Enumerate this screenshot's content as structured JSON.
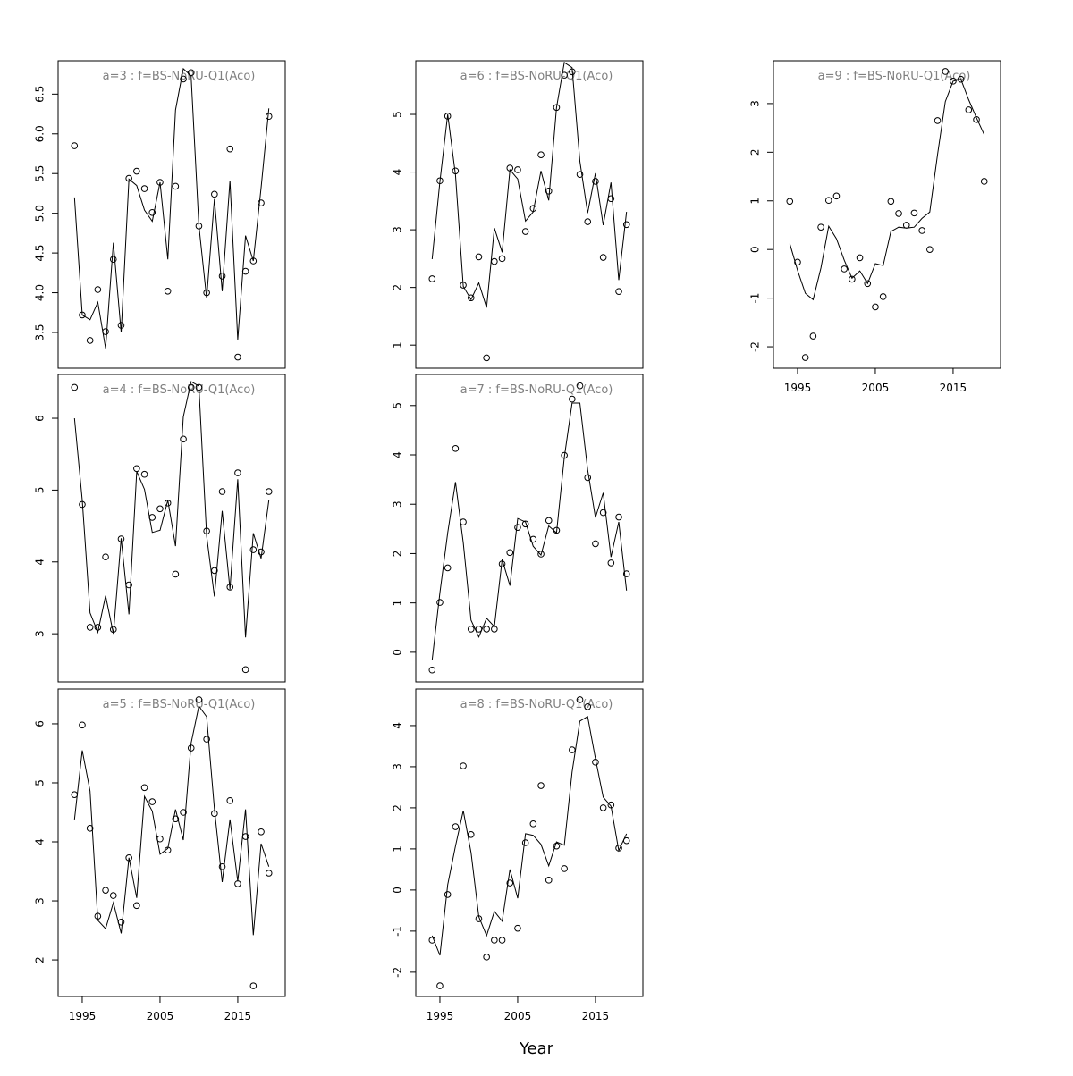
{
  "chart_data": [
    {
      "type": "line",
      "title": "a=3  :  f=BS-NoRU-Q1(Aco)",
      "x": [
        1994,
        1995,
        1996,
        1997,
        1998,
        1999,
        2000,
        2001,
        2002,
        2003,
        2004,
        2005,
        2006,
        2007,
        2008,
        2009,
        2010,
        2011,
        2012,
        2013,
        2014,
        2015,
        2016,
        2017,
        2018,
        2019
      ],
      "series": [
        {
          "style": "points",
          "color": "#000000",
          "values": [
            5.85,
            3.72,
            3.4,
            4.04,
            3.51,
            4.42,
            3.59,
            5.44,
            5.53,
            5.31,
            5.01,
            5.39,
            4.02,
            5.34,
            6.69,
            6.77,
            4.84,
            4.0,
            5.24,
            4.21,
            5.81,
            3.19,
            4.27,
            4.4,
            5.13,
            6.22
          ]
        },
        {
          "style": "line",
          "color": "#000000",
          "values": [
            5.2,
            3.72,
            3.66,
            3.88,
            3.3,
            4.63,
            3.5,
            5.43,
            5.35,
            5.04,
            4.9,
            5.39,
            4.42,
            6.3,
            6.82,
            6.73,
            4.85,
            3.93,
            5.18,
            4.02,
            5.41,
            3.41,
            4.72,
            4.4,
            5.32,
            6.32
          ]
        }
      ],
      "xlim": [
        1991.9,
        2021.1
      ],
      "ylim": [
        3.05,
        6.92
      ],
      "yticks": [
        3.5,
        {
          "value": 4,
          "label": "4.0"
        },
        4.5,
        {
          "value": 5,
          "label": "5.0"
        },
        5.5,
        {
          "value": 6,
          "label": "6.0"
        },
        6.5
      ]
    },
    {
      "type": "line",
      "title": "a=4  :  f=BS-NoRU-Q1(Aco)",
      "x": [
        1994,
        1995,
        1996,
        1997,
        1998,
        1999,
        2000,
        2001,
        2002,
        2003,
        2004,
        2005,
        2006,
        2007,
        2008,
        2009,
        2010,
        2011,
        2012,
        2013,
        2014,
        2015,
        2016,
        2017,
        2018,
        2019
      ],
      "series": [
        {
          "style": "points",
          "color": "#000000",
          "values": [
            6.43,
            4.8,
            3.09,
            3.09,
            4.07,
            3.06,
            4.32,
            3.68,
            5.3,
            5.22,
            4.62,
            4.74,
            4.82,
            3.83,
            5.71,
            6.43,
            6.43,
            4.43,
            3.88,
            4.98,
            3.65,
            5.24,
            2.5,
            4.17,
            4.14,
            4.98
          ]
        },
        {
          "style": "line",
          "color": "#000000",
          "values": [
            6.0,
            4.86,
            3.29,
            3.02,
            3.53,
            3.0,
            4.33,
            3.27,
            5.26,
            5.01,
            4.41,
            4.44,
            4.86,
            4.22,
            6.02,
            6.51,
            6.45,
            4.36,
            3.52,
            4.71,
            3.62,
            5.15,
            2.95,
            4.4,
            4.05,
            4.86
          ]
        }
      ],
      "xlim": [
        1991.9,
        2021.1
      ],
      "ylim": [
        2.33,
        6.61
      ],
      "yticks": [
        3,
        4,
        5,
        6
      ]
    },
    {
      "type": "line",
      "title": "a=5  :  f=BS-NoRU-Q1(Aco)",
      "x": [
        1994,
        1995,
        1996,
        1997,
        1998,
        1999,
        2000,
        2001,
        2002,
        2003,
        2004,
        2005,
        2006,
        2007,
        2008,
        2009,
        2010,
        2011,
        2012,
        2013,
        2014,
        2015,
        2016,
        2017,
        2018,
        2019
      ],
      "series": [
        {
          "style": "points",
          "color": "#000000",
          "values": [
            4.8,
            5.98,
            4.23,
            2.74,
            3.18,
            3.09,
            2.64,
            3.73,
            2.92,
            4.92,
            4.68,
            4.05,
            3.86,
            4.39,
            4.5,
            5.59,
            6.41,
            5.74,
            4.48,
            3.58,
            4.7,
            3.29,
            4.09,
            1.56,
            4.17,
            3.47
          ]
        },
        {
          "style": "line",
          "color": "#000000",
          "values": [
            4.38,
            5.55,
            4.86,
            2.67,
            2.53,
            2.97,
            2.45,
            3.73,
            3.05,
            4.77,
            4.52,
            3.79,
            3.89,
            4.55,
            4.03,
            5.67,
            6.3,
            6.12,
            4.56,
            3.32,
            4.38,
            3.33,
            4.55,
            2.42,
            3.97,
            3.58
          ]
        }
      ],
      "xlim": [
        1991.9,
        2021.1
      ],
      "ylim": [
        1.38,
        6.59
      ],
      "yticks": [
        2,
        3,
        4,
        5,
        6
      ],
      "xticks": [
        1995,
        2005,
        2015
      ]
    },
    {
      "type": "line",
      "title": "a=6  :  f=BS-NoRU-Q1(Aco)",
      "x": [
        1994,
        1995,
        1996,
        1997,
        1998,
        1999,
        2000,
        2001,
        2002,
        2003,
        2004,
        2005,
        2006,
        2007,
        2008,
        2009,
        2010,
        2011,
        2012,
        2013,
        2014,
        2015,
        2016,
        2017,
        2018,
        2019
      ],
      "series": [
        {
          "style": "points",
          "color": "#000000",
          "values": [
            2.15,
            3.85,
            4.97,
            4.02,
            2.04,
            1.82,
            2.53,
            0.78,
            2.45,
            2.5,
            4.07,
            4.04,
            2.97,
            3.37,
            4.3,
            3.67,
            5.12,
            5.68,
            5.74,
            3.96,
            3.14,
            3.84,
            2.52,
            3.54,
            1.93,
            3.09
          ]
        },
        {
          "style": "line",
          "color": "#000000",
          "values": [
            2.49,
            3.84,
            5.0,
            3.95,
            2.02,
            1.79,
            2.08,
            1.65,
            3.03,
            2.61,
            4.04,
            3.88,
            3.15,
            3.31,
            4.02,
            3.51,
            5.12,
            5.9,
            5.81,
            4.19,
            3.29,
            3.98,
            3.08,
            3.82,
            2.13,
            3.31
          ]
        }
      ],
      "xlim": [
        1991.9,
        2021.1
      ],
      "ylim": [
        0.6,
        5.93
      ],
      "yticks": [
        1,
        2,
        3,
        4,
        5
      ]
    },
    {
      "type": "line",
      "title": "a=7  :  f=BS-NoRU-Q1(Aco)",
      "x": [
        1994,
        1995,
        1996,
        1997,
        1998,
        1999,
        2000,
        2001,
        2002,
        2003,
        2004,
        2005,
        2006,
        2007,
        2008,
        2009,
        2010,
        2011,
        2012,
        2013,
        2014,
        2015,
        2016,
        2017,
        2018,
        2019
      ],
      "series": [
        {
          "style": "points",
          "color": "#000000",
          "values": [
            -0.36,
            1.01,
            1.71,
            4.13,
            2.64,
            0.47,
            0.47,
            0.47,
            0.47,
            1.79,
            2.02,
            2.53,
            2.6,
            2.29,
            1.99,
            2.67,
            2.47,
            3.99,
            5.13,
            5.4,
            3.54,
            2.2,
            2.83,
            1.81,
            2.74,
            1.59
          ]
        },
        {
          "style": "line",
          "color": "#000000",
          "values": [
            -0.16,
            1.21,
            2.42,
            3.45,
            2.22,
            0.65,
            0.31,
            0.69,
            0.52,
            1.88,
            1.35,
            2.71,
            2.64,
            2.15,
            1.97,
            2.56,
            2.42,
            3.95,
            5.05,
            5.05,
            3.7,
            2.73,
            3.23,
            1.93,
            2.64,
            1.25
          ]
        }
      ],
      "xlim": [
        1991.9,
        2021.1
      ],
      "ylim": [
        -0.6,
        5.63
      ],
      "yticks": [
        0,
        1,
        2,
        3,
        4,
        5
      ]
    },
    {
      "type": "line",
      "title": "a=8  :  f=BS-NoRU-Q1(Aco)",
      "xlabel": "Year",
      "x": [
        1994,
        1995,
        1996,
        1997,
        1998,
        1999,
        2000,
        2001,
        2002,
        2003,
        2004,
        2005,
        2006,
        2007,
        2008,
        2009,
        2010,
        2011,
        2012,
        2013,
        2014,
        2015,
        2016,
        2017,
        2018,
        2019
      ],
      "series": [
        {
          "style": "points",
          "color": "#000000",
          "values": [
            -1.22,
            -2.33,
            -0.11,
            1.54,
            3.02,
            1.35,
            -0.7,
            -1.63,
            -1.22,
            -1.22,
            0.17,
            -0.93,
            1.15,
            1.61,
            2.54,
            0.24,
            1.07,
            0.52,
            3.41,
            4.63,
            4.46,
            3.11,
            2.0,
            2.07,
            1.02,
            1.2
          ]
        },
        {
          "style": "line",
          "color": "#000000",
          "values": [
            -1.11,
            -1.59,
            0.13,
            1.07,
            1.93,
            0.91,
            -0.65,
            -1.11,
            -0.52,
            -0.76,
            0.5,
            -0.2,
            1.37,
            1.33,
            1.11,
            0.59,
            1.17,
            1.09,
            2.87,
            4.11,
            4.22,
            3.2,
            2.26,
            2.04,
            0.96,
            1.37
          ]
        }
      ],
      "xlim": [
        1991.9,
        2021.1
      ],
      "ylim": [
        -2.59,
        4.89
      ],
      "yticks": [
        -2,
        -1,
        0,
        1,
        2,
        3,
        4
      ],
      "xticks": [
        1995,
        2005,
        2015
      ]
    },
    {
      "type": "line",
      "title": "a=9  :  f=BS-NoRU-Q1(Aco)",
      "x": [
        1994,
        1995,
        1996,
        1997,
        1998,
        1999,
        2000,
        2001,
        2002,
        2003,
        2004,
        2005,
        2006,
        2007,
        2008,
        2009,
        2010,
        2011,
        2012,
        2013,
        2014,
        2015,
        2016,
        2017,
        2018,
        2019
      ],
      "series": [
        {
          "style": "points",
          "color": "#000000",
          "values": [
            0.99,
            -0.26,
            -2.22,
            -1.78,
            0.46,
            1.01,
            1.1,
            -0.4,
            -0.61,
            -0.17,
            -0.7,
            -1.18,
            -0.97,
            0.99,
            0.74,
            0.5,
            0.75,
            0.39,
            0.0,
            2.65,
            3.66,
            3.46,
            3.5,
            2.87,
            2.67,
            1.4
          ]
        },
        {
          "style": "line",
          "color": "#000000",
          "values": [
            0.12,
            -0.43,
            -0.9,
            -1.03,
            -0.38,
            0.48,
            0.22,
            -0.22,
            -0.59,
            -0.44,
            -0.7,
            -0.29,
            -0.33,
            0.37,
            0.46,
            0.44,
            0.46,
            0.64,
            0.77,
            1.95,
            3.04,
            3.46,
            3.5,
            3.08,
            2.71,
            2.36
          ]
        }
      ],
      "xlim": [
        1991.9,
        2021.1
      ],
      "ylim": [
        -2.44,
        3.88
      ],
      "yticks": [
        -2,
        -1,
        0,
        1,
        2,
        3
      ],
      "xticks": [
        1995,
        2005,
        2015
      ]
    }
  ]
}
